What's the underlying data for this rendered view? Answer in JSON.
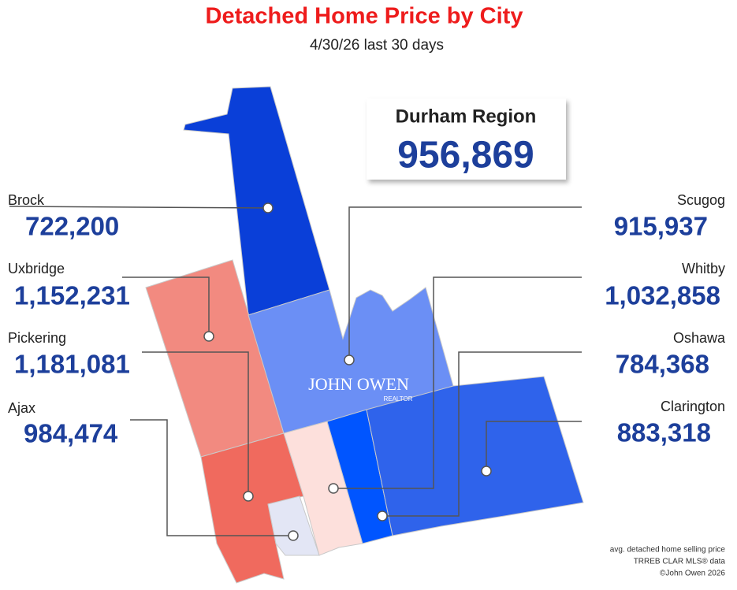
{
  "header": {
    "title": "Detached Home Price by City",
    "subtitle": "4/30/26  last 30 days"
  },
  "summary": {
    "label": "Durham Region",
    "price": "956,869"
  },
  "cities": [
    {
      "name": "Brock",
      "price": "722,200"
    },
    {
      "name": "Uxbridge",
      "price": "1,152,231"
    },
    {
      "name": "Pickering",
      "price": "1,181,081"
    },
    {
      "name": "Ajax",
      "price": "984,474"
    },
    {
      "name": "Scugog",
      "price": "915,937"
    },
    {
      "name": "Whitby",
      "price": "1,032,858"
    },
    {
      "name": "Oshawa",
      "price": "784,368"
    },
    {
      "name": "Clarington",
      "price": "883,318"
    }
  ],
  "logo": {
    "name": "JOHN OWEN",
    "tag": "REALTOR"
  },
  "footnote": [
    "avg. detached home selling price",
    "TRREB CLAR MLS® data",
    "©John Owen 2026"
  ]
}
